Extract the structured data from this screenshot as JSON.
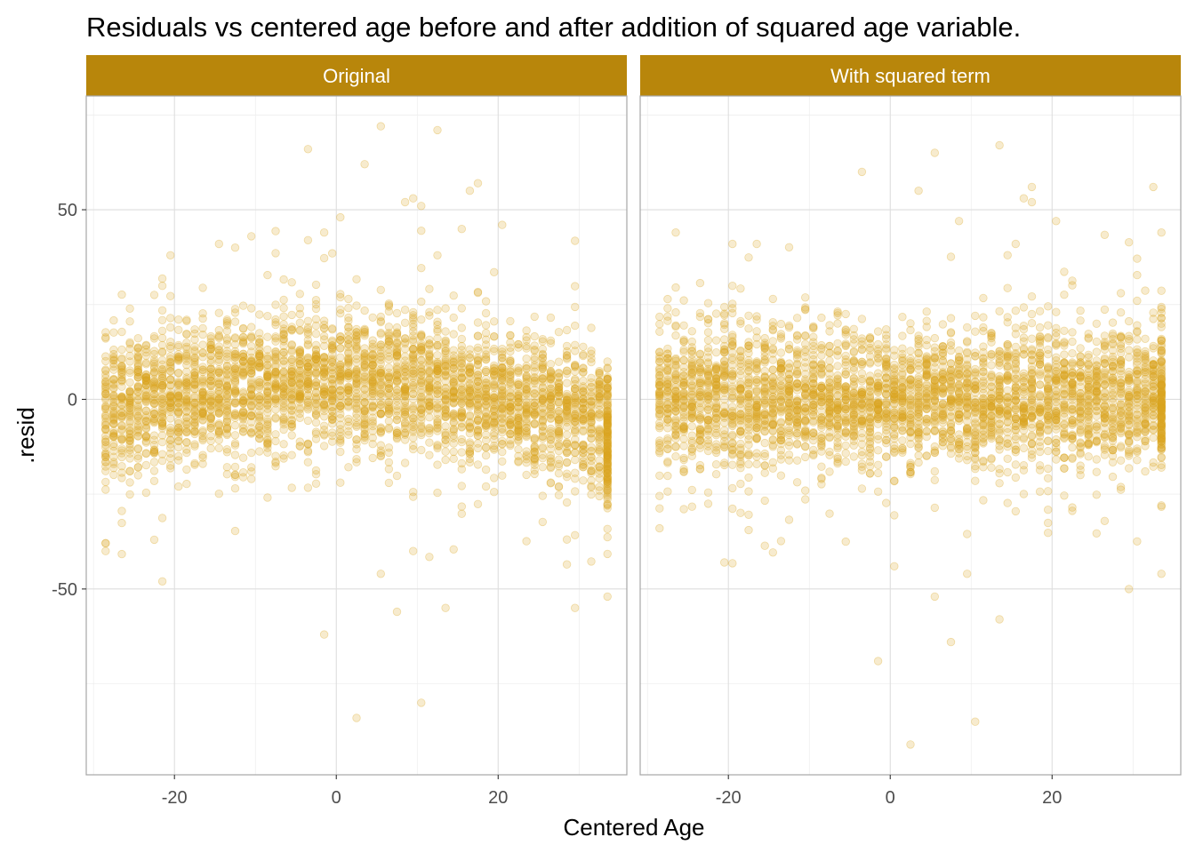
{
  "chart_data": {
    "type": "scatter",
    "title": "Residuals vs centered age before and after addition of squared age variable.",
    "xlabel": "Centered Age",
    "ylabel": ".resid",
    "xlim": [
      -30.9,
      35.9
    ],
    "ylim": [
      -99,
      80
    ],
    "x_ticks": [
      -20,
      0,
      20
    ],
    "x_tick_labels": [
      "-20",
      "0",
      "20"
    ],
    "y_ticks": [
      -50,
      0,
      50
    ],
    "y_tick_labels": [
      "-50",
      "0",
      "50"
    ],
    "grid": true,
    "point_color": "#DAA520",
    "strip_color": "#B8860B",
    "panels": [
      {
        "strip_label": "Original",
        "seed": 11,
        "trend": "quadratic-inverted",
        "outliers": [
          [
            5.5,
            72
          ],
          [
            12.5,
            71
          ],
          [
            -3.5,
            66
          ],
          [
            3.5,
            62
          ],
          [
            16.5,
            55
          ],
          [
            17.5,
            57
          ],
          [
            9.5,
            53
          ],
          [
            8.5,
            52
          ],
          [
            10.5,
            51
          ],
          [
            0.5,
            48
          ],
          [
            -1.5,
            44
          ],
          [
            -14.5,
            41
          ],
          [
            -12.5,
            40
          ],
          [
            -10.5,
            43
          ],
          [
            20.5,
            46
          ],
          [
            12.5,
            38
          ],
          [
            -20.5,
            38
          ],
          [
            2.5,
            -84
          ],
          [
            10.5,
            -80
          ],
          [
            -1.5,
            -62
          ],
          [
            7.5,
            -56
          ],
          [
            13.5,
            -55
          ],
          [
            29.5,
            -55
          ],
          [
            33.5,
            -52
          ],
          [
            5.5,
            -46
          ],
          [
            9.5,
            -40
          ],
          [
            -21.5,
            -48
          ],
          [
            -28.5,
            -40
          ],
          [
            -28.5,
            -38
          ],
          [
            -22.5,
            -37
          ]
        ]
      },
      {
        "strip_label": "With squared term",
        "seed": 23,
        "trend": "flat",
        "outliers": [
          [
            13.5,
            67
          ],
          [
            5.5,
            65
          ],
          [
            -3.5,
            60
          ],
          [
            3.5,
            55
          ],
          [
            17.5,
            56
          ],
          [
            17.5,
            52
          ],
          [
            16.5,
            53
          ],
          [
            8.5,
            47
          ],
          [
            32.5,
            56
          ],
          [
            33.5,
            44
          ],
          [
            20.5,
            47
          ],
          [
            -26.5,
            44
          ],
          [
            -16.5,
            41
          ],
          [
            -19.5,
            41
          ],
          [
            2.5,
            -91
          ],
          [
            10.5,
            -85
          ],
          [
            -1.5,
            -69
          ],
          [
            7.5,
            -64
          ],
          [
            13.5,
            -58
          ],
          [
            5.5,
            -52
          ],
          [
            29.5,
            -50
          ],
          [
            9.5,
            -46
          ],
          [
            -20.5,
            -43
          ],
          [
            33.5,
            -46
          ],
          [
            0.5,
            -44
          ],
          [
            -28.5,
            -34
          ]
        ]
      }
    ]
  }
}
